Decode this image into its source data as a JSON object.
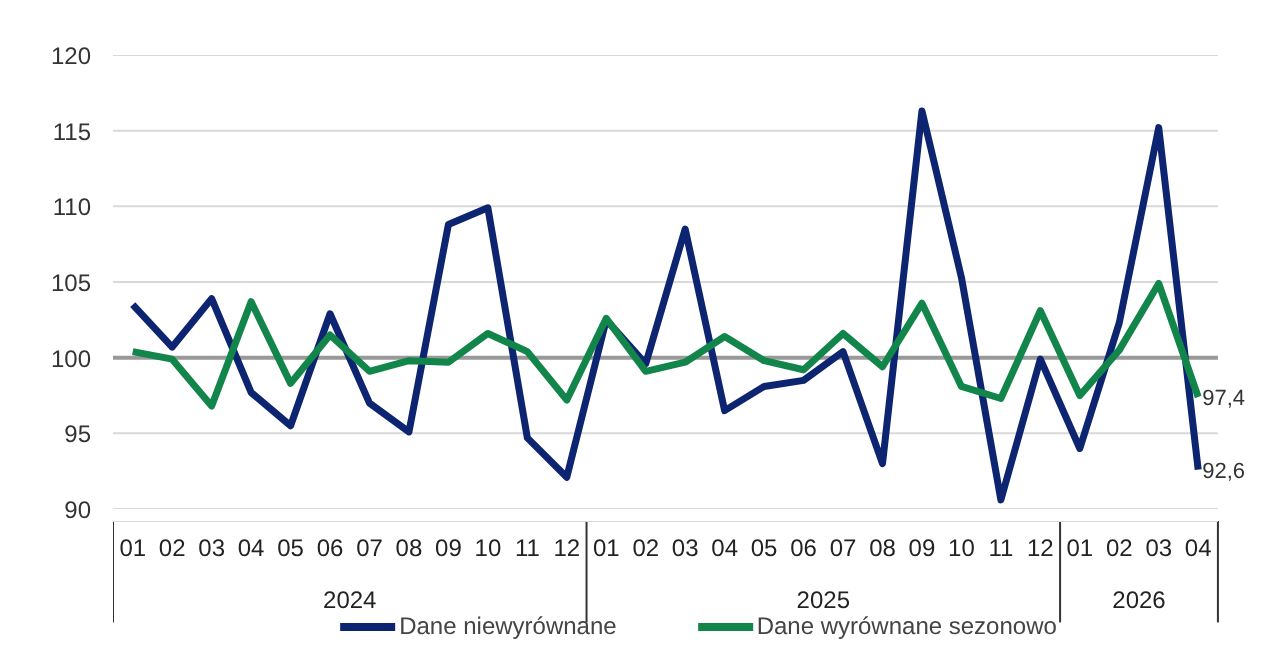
{
  "chart_data": {
    "type": "line",
    "categories": [
      "01",
      "02",
      "03",
      "04",
      "05",
      "06",
      "07",
      "08",
      "09",
      "10",
      "11",
      "12",
      "01",
      "02",
      "03",
      "04",
      "05",
      "06",
      "07",
      "08",
      "09",
      "10",
      "11",
      "12",
      "01",
      "02",
      "03",
      "04"
    ],
    "annotations": [
      "2024",
      "2025",
      "2026"
    ],
    "series": [
      {
        "name": "Dane niewyrównane",
        "color": "#0d2471",
        "values": [
          103.5,
          100.7,
          103.9,
          97.7,
          95.5,
          102.9,
          97.0,
          95.1,
          108.8,
          109.9,
          94.7,
          92.1,
          102.5,
          99.6,
          108.5,
          96.5,
          98.1,
          98.5,
          100.4,
          93.0,
          116.3,
          105.3,
          90.6,
          99.9,
          94.0,
          102.3,
          115.2,
          92.6
        ],
        "value_labels": [
          null,
          null,
          null,
          null,
          null,
          null,
          null,
          null,
          null,
          null,
          null,
          null,
          null,
          null,
          null,
          null,
          null,
          null,
          null,
          null,
          null,
          null,
          null,
          null,
          null,
          null,
          null,
          "92,6"
        ]
      },
      {
        "name": "Dane wyrównane sezonowo",
        "color": "#12854a",
        "values": [
          100.4,
          99.9,
          96.8,
          103.7,
          98.3,
          101.5,
          99.1,
          99.8,
          99.7,
          101.6,
          100.4,
          97.2,
          102.6,
          99.1,
          99.7,
          101.4,
          99.8,
          99.2,
          101.6,
          99.4,
          103.6,
          98.1,
          97.3,
          103.1,
          97.5,
          100.5,
          104.9,
          97.4
        ],
        "value_labels": [
          null,
          null,
          null,
          null,
          null,
          null,
          null,
          null,
          null,
          null,
          null,
          null,
          null,
          null,
          null,
          null,
          null,
          null,
          null,
          null,
          null,
          null,
          null,
          null,
          null,
          null,
          null,
          "97,4"
        ]
      }
    ],
    "ylim": [
      90,
      120
    ],
    "yticks": [
      90,
      95,
      100,
      105,
      110,
      115,
      120
    ],
    "ref_lines": [
      {
        "axis": "y",
        "value": 100,
        "color": "#999999"
      }
    ],
    "grid": "y",
    "legend": "bottom",
    "marker": "none",
    "line_style": "solid"
  }
}
